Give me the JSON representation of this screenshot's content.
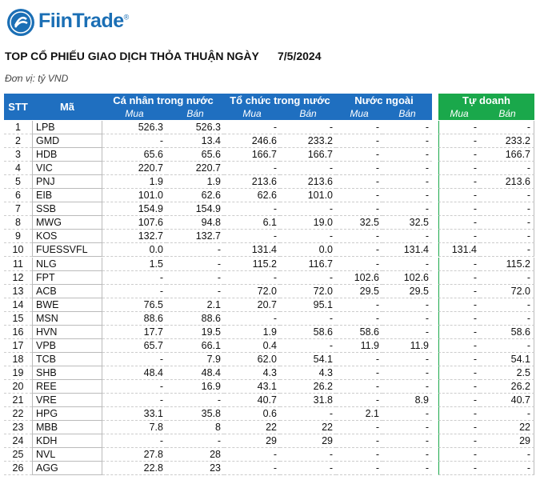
{
  "header": {
    "brand": "FiinTrade",
    "brand_mark": "®",
    "title": "TOP CỔ PHIẾU GIAO DỊCH THỎA THUẬN NGÀY",
    "date": "7/5/2024",
    "unit": "Đơn vị: tỷ VND"
  },
  "table": {
    "columns": [
      "STT",
      "Mã"
    ],
    "groups": [
      {
        "name": "Cá nhân trong nước",
        "sub": [
          "Mua",
          "Bán"
        ]
      },
      {
        "name": "Tổ chức trong nước",
        "sub": [
          "Mua",
          "Bán"
        ]
      },
      {
        "name": "Nước ngoài",
        "sub": [
          "Mua",
          "Bán"
        ]
      },
      {
        "name": "Tự doanh",
        "sub": [
          "Mua",
          "Bán"
        ]
      }
    ],
    "rows": [
      [
        "1",
        "LPB",
        "526.3",
        "526.3",
        "-",
        "-",
        "-",
        "-",
        "-",
        "-"
      ],
      [
        "2",
        "GMD",
        "-",
        "13.4",
        "246.6",
        "233.2",
        "-",
        "-",
        "-",
        "233.2"
      ],
      [
        "3",
        "HDB",
        "65.6",
        "65.6",
        "166.7",
        "166.7",
        "-",
        "-",
        "-",
        "166.7"
      ],
      [
        "4",
        "VIC",
        "220.7",
        "220.7",
        "-",
        "-",
        "-",
        "-",
        "-",
        "-"
      ],
      [
        "5",
        "PNJ",
        "1.9",
        "1.9",
        "213.6",
        "213.6",
        "-",
        "-",
        "-",
        "213.6"
      ],
      [
        "6",
        "EIB",
        "101.0",
        "62.6",
        "62.6",
        "101.0",
        "-",
        "-",
        "-",
        "-"
      ],
      [
        "7",
        "SSB",
        "154.9",
        "154.9",
        "-",
        "-",
        "-",
        "-",
        "-",
        "-"
      ],
      [
        "8",
        "MWG",
        "107.6",
        "94.8",
        "6.1",
        "19.0",
        "32.5",
        "32.5",
        "-",
        "-"
      ],
      [
        "9",
        "KOS",
        "132.7",
        "132.7",
        "-",
        "-",
        "-",
        "-",
        "-",
        "-"
      ],
      [
        "10",
        "FUESSVFL",
        "0.0",
        "-",
        "131.4",
        "0.0",
        "-",
        "131.4",
        "131.4",
        "-"
      ],
      [
        "11",
        "NLG",
        "1.5",
        "-",
        "115.2",
        "116.7",
        "-",
        "-",
        "-",
        "115.2"
      ],
      [
        "12",
        "FPT",
        "-",
        "-",
        "-",
        "-",
        "102.6",
        "102.6",
        "-",
        "-"
      ],
      [
        "13",
        "ACB",
        "-",
        "-",
        "72.0",
        "72.0",
        "29.5",
        "29.5",
        "-",
        "72.0"
      ],
      [
        "14",
        "BWE",
        "76.5",
        "2.1",
        "20.7",
        "95.1",
        "-",
        "-",
        "-",
        "-"
      ],
      [
        "15",
        "MSN",
        "88.6",
        "88.6",
        "-",
        "-",
        "-",
        "-",
        "-",
        "-"
      ],
      [
        "16",
        "HVN",
        "17.7",
        "19.5",
        "1.9",
        "58.6",
        "58.6",
        "-",
        "-",
        "58.6"
      ],
      [
        "17",
        "VPB",
        "65.7",
        "66.1",
        "0.4",
        "-",
        "11.9",
        "11.9",
        "-",
        "-"
      ],
      [
        "18",
        "TCB",
        "-",
        "7.9",
        "62.0",
        "54.1",
        "-",
        "-",
        "-",
        "54.1"
      ],
      [
        "19",
        "SHB",
        "48.4",
        "48.4",
        "4.3",
        "4.3",
        "-",
        "-",
        "-",
        "2.5"
      ],
      [
        "20",
        "REE",
        "-",
        "16.9",
        "43.1",
        "26.2",
        "-",
        "-",
        "-",
        "26.2"
      ],
      [
        "21",
        "VRE",
        "-",
        "-",
        "40.7",
        "31.8",
        "-",
        "8.9",
        "-",
        "40.7"
      ],
      [
        "22",
        "HPG",
        "33.1",
        "35.8",
        "0.6",
        "-",
        "2.1",
        "-",
        "-",
        "-"
      ],
      [
        "23",
        "MBB",
        "7.8",
        "8",
        "22",
        "22",
        "-",
        "-",
        "-",
        "22"
      ],
      [
        "24",
        "KDH",
        "-",
        "-",
        "29",
        "29",
        "-",
        "-",
        "-",
        "29"
      ],
      [
        "25",
        "NVL",
        "27.8",
        "28",
        "-",
        "-",
        "-",
        "-",
        "-",
        "-"
      ],
      [
        "26",
        "AGG",
        "22.8",
        "23",
        "-",
        "-",
        "-",
        "-",
        "-",
        "-"
      ]
    ]
  }
}
